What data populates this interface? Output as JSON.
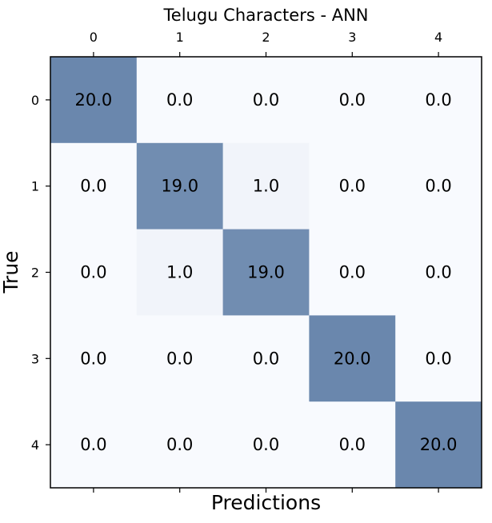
{
  "chart_data": {
    "type": "heatmap",
    "title": "Telugu Characters - ANN",
    "xlabel": "Predictions",
    "ylabel": "True",
    "x_categories": [
      "0",
      "1",
      "2",
      "3",
      "4"
    ],
    "y_categories": [
      "0",
      "1",
      "2",
      "3",
      "4"
    ],
    "x_tick_position": "top",
    "values": [
      [
        20.0,
        0.0,
        0.0,
        0.0,
        0.0
      ],
      [
        0.0,
        19.0,
        1.0,
        0.0,
        0.0
      ],
      [
        0.0,
        1.0,
        19.0,
        0.0,
        0.0
      ],
      [
        0.0,
        0.0,
        0.0,
        20.0,
        0.0
      ],
      [
        0.0,
        0.0,
        0.0,
        0.0,
        20.0
      ]
    ],
    "value_format": "0.0",
    "color_min": "#f8fafe",
    "color_max": "#6a87ad",
    "grid": false,
    "legend": false
  }
}
